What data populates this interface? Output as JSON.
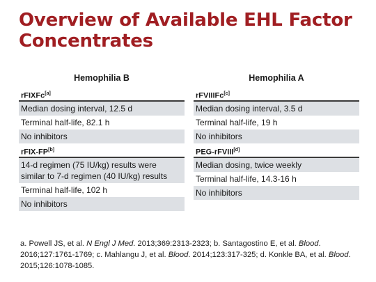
{
  "slide": {
    "title": "Overview of Available EHL Factor Concentrates"
  },
  "hemophilia_b": {
    "header": "Hemophilia B",
    "products": [
      {
        "name": "rFIXFc",
        "ref": "[a]",
        "rows": [
          "Median dosing interval, 12.5 d",
          "Terminal half-life, 82.1 h",
          "No inhibitors"
        ]
      },
      {
        "name": "rFIX-FP",
        "ref": "[b]",
        "rows": [
          "14-d regimen (75 IU/kg) results were similar to 7-d regimen (40 IU/kg) results",
          "Terminal half-life, 102 h",
          "No inhibitors"
        ]
      }
    ]
  },
  "hemophilia_a": {
    "header": "Hemophilia A",
    "products": [
      {
        "name": "rFVIIIFc",
        "ref": "[c]",
        "rows": [
          "Median dosing interval, 3.5 d",
          "Terminal half-life, 19 h",
          "No inhibitors"
        ]
      },
      {
        "name": "PEG-rFVIII",
        "ref": "[d]",
        "rows": [
          "Median dosing, twice weekly",
          "Terminal half-life, 14.3-16 h",
          "No inhibitors"
        ]
      }
    ]
  },
  "references": {
    "a_plain": "a. Powell JS, et al. ",
    "a_journal": "N Engl J Med",
    "a_rest": ". 2013;369:2313-2323; b. Santagostino E, et al. ",
    "b_journal": "Blood",
    "b_rest": ". 2016;127:1761-1769; c. Mahlangu J, et al. ",
    "c_journal": "Blood",
    "c_rest": ". 2014;123:317-325; d. Konkle BA, et al. ",
    "d_journal": "Blood",
    "d_rest": ". 2015;126:1078-1085."
  }
}
